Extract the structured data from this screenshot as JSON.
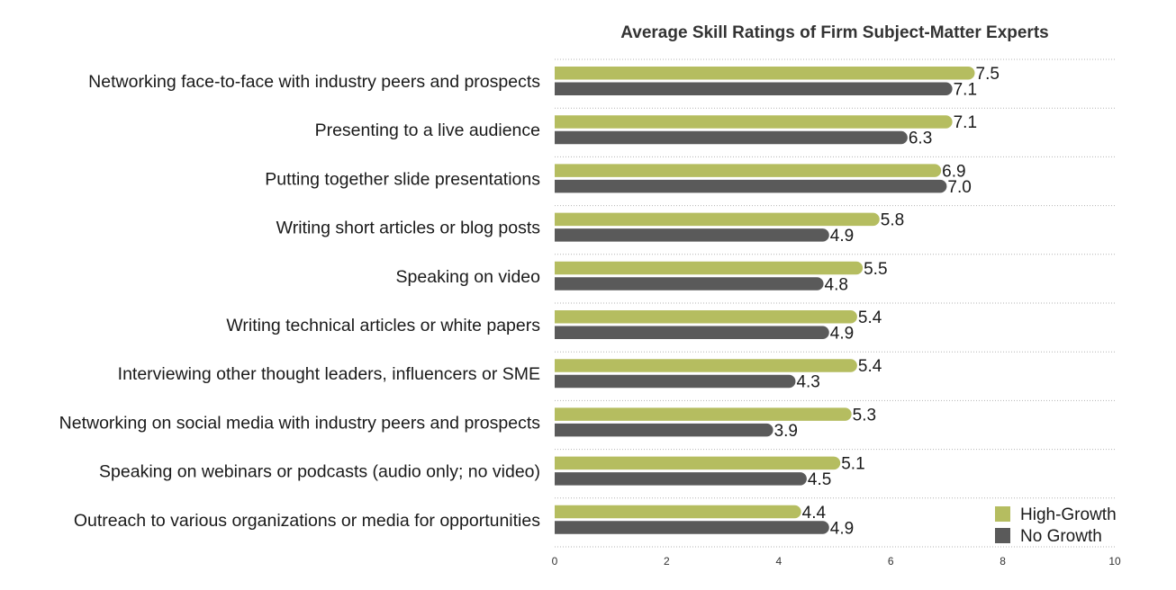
{
  "chart_data": {
    "type": "bar",
    "orientation": "horizontal",
    "title": "Average Skill Ratings of Firm Subject-Matter Experts",
    "categories": [
      "Networking face-to-face with industry peers and prospects",
      "Presenting to a live audience",
      "Putting together slide presentations",
      "Writing short articles or blog posts",
      "Speaking on video",
      "Writing technical articles or white papers",
      "Interviewing other thought leaders, influencers or SME",
      "Networking on social media with industry peers and prospects",
      "Speaking on webinars or podcasts (audio only; no video)",
      "Outreach to various organizations or media for opportunities"
    ],
    "series": [
      {
        "name": "High-Growth",
        "color": "#b5bd60",
        "values": [
          7.5,
          7.1,
          6.9,
          5.8,
          5.5,
          5.4,
          5.4,
          5.3,
          5.1,
          4.4
        ],
        "labels": [
          "7.5",
          "7.1",
          "6.9",
          "5.8",
          "5.5",
          "5.4",
          "5.4",
          "5.3",
          "5.1",
          "4.4"
        ]
      },
      {
        "name": "No Growth",
        "color": "#5a5a5a",
        "values": [
          7.1,
          6.3,
          7.0,
          4.9,
          4.8,
          4.9,
          4.3,
          3.9,
          4.5,
          4.9
        ],
        "labels": [
          "7.1",
          "6.3",
          "7.0",
          "4.9",
          "4.8",
          "4.9",
          "4.3",
          "3.9",
          "4.5",
          "4.9"
        ]
      }
    ],
    "xlim": [
      0,
      10
    ],
    "xticks": [
      "0",
      "2",
      "4",
      "6",
      "8",
      "10"
    ],
    "grid": "dotted horizontal separators",
    "legend": "bottom-right"
  }
}
